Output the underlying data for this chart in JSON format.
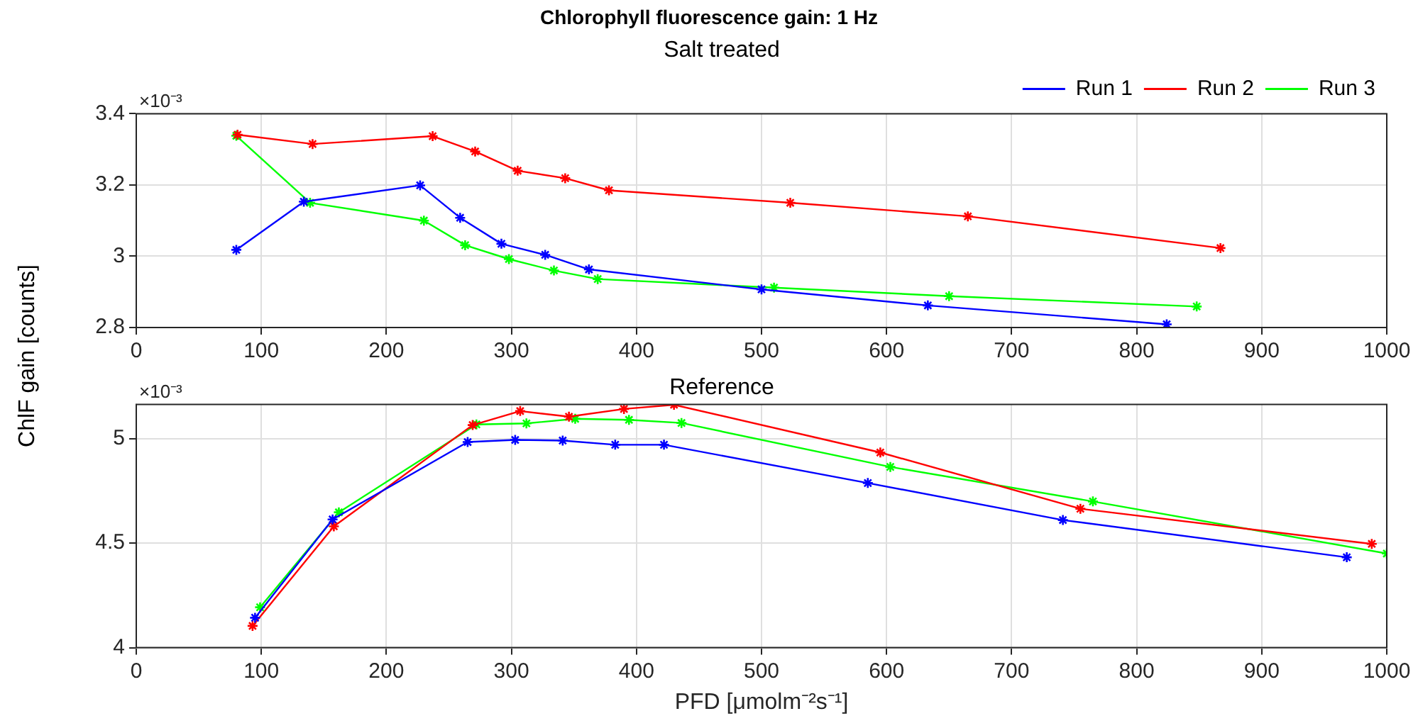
{
  "chart_data": [
    {
      "type": "line",
      "title": "Chlorophyll fluorescence gain: 1 Hz",
      "subtitle": "Salt treated",
      "ylabel": "ChlF gain [counts]",
      "annotations": [
        "×10⁻³"
      ],
      "marker": "cross",
      "grid": true,
      "legend": "top right",
      "xlim": [
        0,
        1000
      ],
      "xticks": [
        0,
        100,
        200,
        300,
        400,
        500,
        600,
        700,
        800,
        900,
        1000
      ],
      "ylim": [
        2.8,
        3.4
      ],
      "yticks": [
        2.8,
        3,
        3.2,
        3.4
      ],
      "series": [
        {
          "name": "Run 1",
          "color": "#0000ff",
          "x": [
            80,
            134,
            227,
            259,
            292,
            327,
            362,
            500,
            633,
            824
          ],
          "values": [
            3.018,
            3.153,
            3.199,
            3.108,
            3.035,
            3.004,
            2.963,
            2.907,
            2.862,
            2.809
          ]
        },
        {
          "name": "Run 2",
          "color": "#ff0000",
          "x": [
            81,
            141,
            237,
            271,
            305,
            343,
            378,
            523,
            665,
            867
          ],
          "values": [
            3.341,
            3.315,
            3.337,
            3.294,
            3.24,
            3.219,
            3.185,
            3.15,
            3.112,
            3.023
          ]
        },
        {
          "name": "Run 3",
          "color": "#00ff00",
          "x": [
            80,
            139,
            230,
            263,
            298,
            334,
            369,
            510,
            650,
            848
          ],
          "values": [
            3.338,
            3.15,
            3.1,
            3.031,
            2.992,
            2.96,
            2.936,
            2.912,
            2.888,
            2.859
          ]
        }
      ]
    },
    {
      "type": "line",
      "title": "Reference",
      "xlabel": "PFD [μmolm⁻²s⁻¹]",
      "annotations": [
        "×10⁻³"
      ],
      "marker": "cross",
      "grid": true,
      "xlim": [
        0,
        1000
      ],
      "xticks": [
        0,
        100,
        200,
        300,
        400,
        500,
        600,
        700,
        800,
        900,
        1000
      ],
      "ylim": [
        4,
        5.163
      ],
      "yticks": [
        4,
        4.5,
        5
      ],
      "series": [
        {
          "color": "#0000ff",
          "x": [
            95,
            157,
            265,
            303,
            341,
            383,
            422,
            585,
            741,
            968
          ],
          "values": [
            4.143,
            4.613,
            4.983,
            4.993,
            4.99,
            4.97,
            4.97,
            4.787,
            4.61,
            4.432
          ]
        },
        {
          "color": "#ff0000",
          "x": [
            93,
            158,
            269,
            307,
            346,
            390,
            430,
            595,
            755,
            988
          ],
          "values": [
            4.104,
            4.58,
            5.064,
            5.131,
            5.104,
            5.141,
            5.161,
            4.933,
            4.664,
            4.496
          ]
        },
        {
          "color": "#00ff00",
          "x": [
            99,
            162,
            272,
            312,
            351,
            394,
            436,
            603,
            765,
            1000
          ],
          "values": [
            4.193,
            4.647,
            5.067,
            5.072,
            5.094,
            5.089,
            5.074,
            4.864,
            4.699,
            4.45
          ]
        }
      ]
    }
  ]
}
